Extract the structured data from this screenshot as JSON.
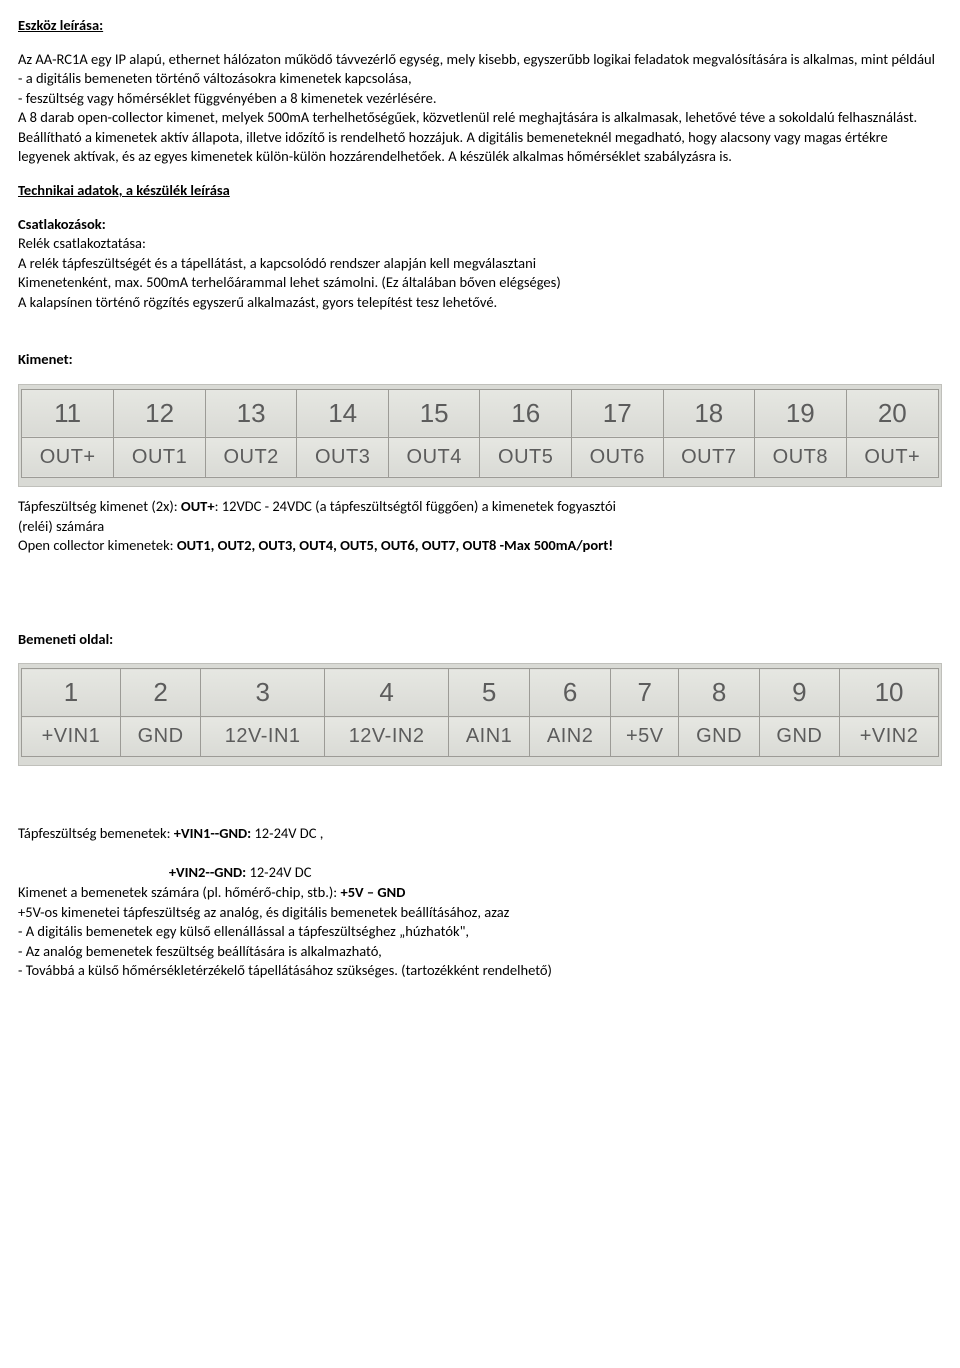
{
  "heading1": "Eszköz leírása:",
  "intro_p1": "Az AA-RC1A egy IP alapú, ethernet hálózaton működő távvezérlő egység, mely kisebb, egyszerűbb logikai feladatok megvalósítására is alkalmas, mint például",
  "intro_b1": "- a digitális bemeneten történő változásokra kimenetek kapcsolása,",
  "intro_b2": "- feszültség vagy hőmérséklet függvényében a 8 kimenetek vezérlésére.",
  "intro_p2": "A 8 darab open-collector kimenet, melyek 500mA terhelhetőségűek, közvetlenül relé meghajtására is alkalmasak, lehetővé téve a sokoldalú felhasználást.",
  "intro_p3": "Beállítható a kimenetek aktív állapota, illetve időzítő is rendelhető hozzájuk. A digitális bemeneteknél megadható, hogy alacsony vagy magas értékre legyenek aktívak, és az egyes kimenetek külön-külön hozzárendelhetőek. A készülék alkalmas hőmérséklet szabályzásra is.",
  "heading2": "Technikai adatok, a készülék leírása",
  "conn_heading": "Csatlakozások:",
  "conn_l1": "Relék csatlakoztatása:",
  "conn_l2": "A relék tápfeszültségét és a tápellátást, a kapcsolódó rendszer alapján kell megválasztani",
  "conn_l3": "Kimenetenként,  max. 500mA terhelőárammal lehet számolni. (Ez általában bőven elégséges)",
  "conn_l4": "A kalapsínen történő rögzítés egyszerű alkalmazást, gyors telepítést tesz lehetővé.",
  "kimenet_heading": "Kimenet:",
  "kimenet_table": {
    "numbers": [
      "11",
      "12",
      "13",
      "14",
      "15",
      "16",
      "17",
      "18",
      "19",
      "20"
    ],
    "labels": [
      "OUT+",
      "OUT1",
      "OUT2",
      "OUT3",
      "OUT4",
      "OUT5",
      "OUT6",
      "OUT7",
      "OUT8",
      "OUT+"
    ]
  },
  "kimenet_after": {
    "l1_pre": "Tápfeszültség kimenet (2x): ",
    "l1_bold": "OUT+",
    "l1_post": ": 12VDC  - 24VDC (a tápfeszültségtől függően) a kimenetek fogyasztói",
    "l2": " (reléi) számára",
    "l3_pre": "Open collector kimenetek: ",
    "l3_bold": "OUT1, OUT2, OUT3, OUT4, OUT5, OUT6, OUT7, OUT8 -Max 500mA/port!"
  },
  "bemeneti_heading": "Bemeneti oldal:",
  "bemeneti_table": {
    "numbers": [
      "1",
      "2",
      "3",
      "4",
      "5",
      "6",
      "7",
      "8",
      "9",
      "10"
    ],
    "labels": [
      "+VIN1",
      "GND",
      "12V-IN1",
      "12V-IN2",
      "AIN1",
      "AIN2",
      "+5V",
      "GND",
      "GND",
      "+VIN2"
    ]
  },
  "bemeneti_after": {
    "l1_pre": "Tápfeszültség bemenetek: ",
    "l1_bold": "+VIN1--GND:",
    "l1_post": " 12-24V DC ,",
    "l2_pad": "                                            ",
    "l2_bold": "+VIN2--GND:",
    "l2_post": " 12-24V DC",
    "l3_pre": "Kimenet a bemenetek számára (pl. hőmérő-chip, stb.): ",
    "l3_bold": "+5V – GND",
    "l4": "+5V-os kimenetei tápfeszültség az analóg, és digitális bemenetek beállításához, azaz",
    "l5": "- A digitális bemenetek egy külső ellenállással a tápfeszültséghez „húzhatók\",",
    "l6": "- Az analóg bemenetek feszültség beállítására is alkalmazható,",
    "l7": "- Továbbá a külső hőmérsékletérzékelő tápellátásához szükséges. (tartozékként rendelhető)"
  }
}
